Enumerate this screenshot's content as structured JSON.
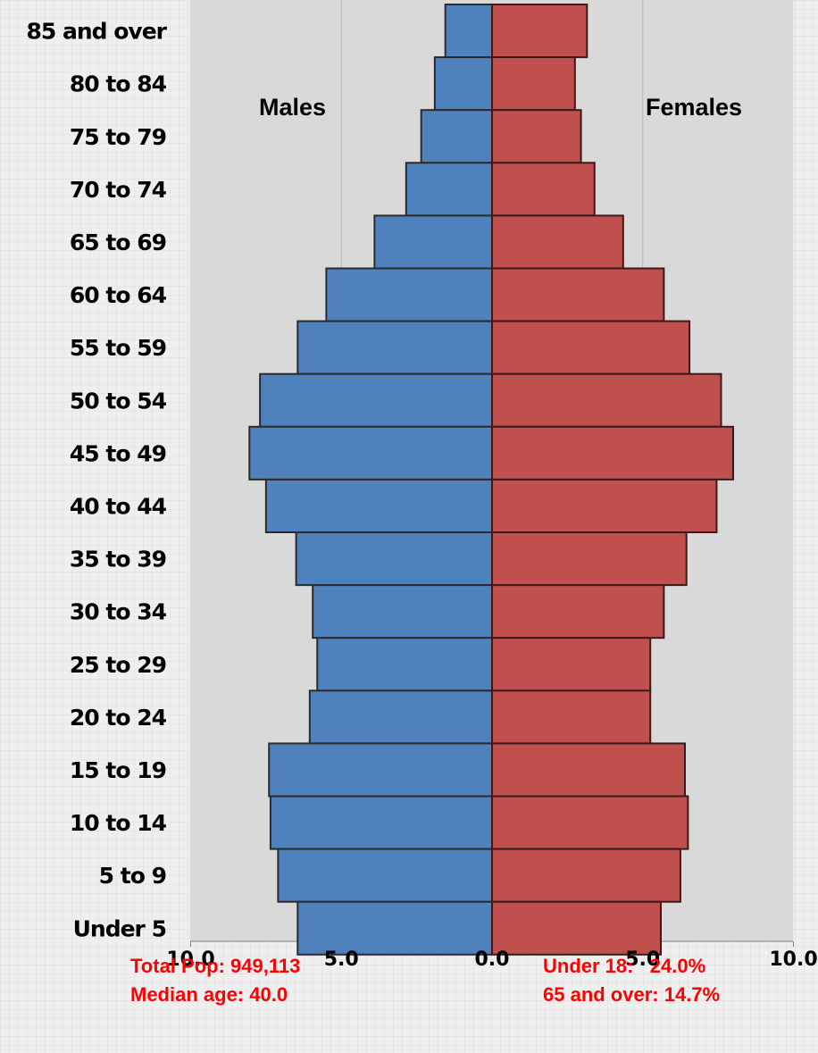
{
  "chart_data": {
    "type": "bar",
    "subtype": "population-pyramid",
    "orientation": "horizontal",
    "categories": [
      "85 and over",
      "80 to 84",
      "75 to 79",
      "70 to 74",
      "65 to 69",
      "60 to 64",
      "55 to 59",
      "50 to 54",
      "45 to 49",
      "40 to 44",
      "35 to 39",
      "30 to 34",
      "25 to 29",
      "20 to 24",
      "15 to 19",
      "10 to 14",
      "5 to 9",
      "Under 5"
    ],
    "series": [
      {
        "name": "Males",
        "color": "#4f81bd",
        "values": [
          1.55,
          1.9,
          2.35,
          2.85,
          3.9,
          5.5,
          6.45,
          7.7,
          8.05,
          7.5,
          6.5,
          5.95,
          5.8,
          6.05,
          7.4,
          7.35,
          7.1,
          6.45
        ]
      },
      {
        "name": "Females",
        "color": "#c0504d",
        "values": [
          3.15,
          2.75,
          2.95,
          3.4,
          4.35,
          5.7,
          6.55,
          7.6,
          8.0,
          7.45,
          6.45,
          5.7,
          5.25,
          5.25,
          6.4,
          6.5,
          6.25,
          5.6
        ]
      }
    ],
    "xlabel": "",
    "ylabel": "",
    "xlim": [
      -10,
      10
    ],
    "x_ticks": [
      "10.0",
      "5.0",
      "0.0",
      "5.0",
      "10.0"
    ],
    "grid": true,
    "background_color": "#d9d9d9"
  },
  "stats": {
    "total_pop": "Total Pop: 949,113",
    "median_age": "Median age: 40.0",
    "under_18": "Under 18:   24.0%",
    "over_65": "65 and over: 14.7%"
  }
}
